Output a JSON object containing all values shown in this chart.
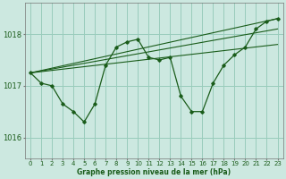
{
  "title": "Graphe pression niveau de la mer (hPa)",
  "bg_color": "#cce8e0",
  "grid_color": "#99ccbb",
  "line_color": "#1a5c1a",
  "xlim": [
    -0.5,
    23.5
  ],
  "ylim": [
    1015.6,
    1018.6
  ],
  "yticks": [
    1016,
    1017,
    1018
  ],
  "xticks": [
    0,
    1,
    2,
    3,
    4,
    5,
    6,
    7,
    8,
    9,
    10,
    11,
    12,
    13,
    14,
    15,
    16,
    17,
    18,
    19,
    20,
    21,
    22,
    23
  ],
  "main_series": [
    1017.25,
    1017.05,
    1017.0,
    1016.65,
    1016.5,
    1016.3,
    1016.65,
    1017.4,
    1017.75,
    1017.85,
    1017.9,
    1017.55,
    1017.5,
    1017.55,
    1016.8,
    1016.5,
    1016.5,
    1017.05,
    1017.4,
    1017.6,
    1017.75,
    1018.1,
    1018.25,
    1018.3
  ],
  "line1": [
    [
      0,
      1017.25
    ],
    [
      23,
      1018.3
    ]
  ],
  "line2": [
    [
      0,
      1017.25
    ],
    [
      23,
      1018.1
    ]
  ],
  "line3": [
    [
      0,
      1017.25
    ],
    [
      23,
      1017.8
    ]
  ],
  "ylabel_fontsize": 6,
  "xlabel_fontsize": 5.5,
  "tick_fontsize": 5
}
